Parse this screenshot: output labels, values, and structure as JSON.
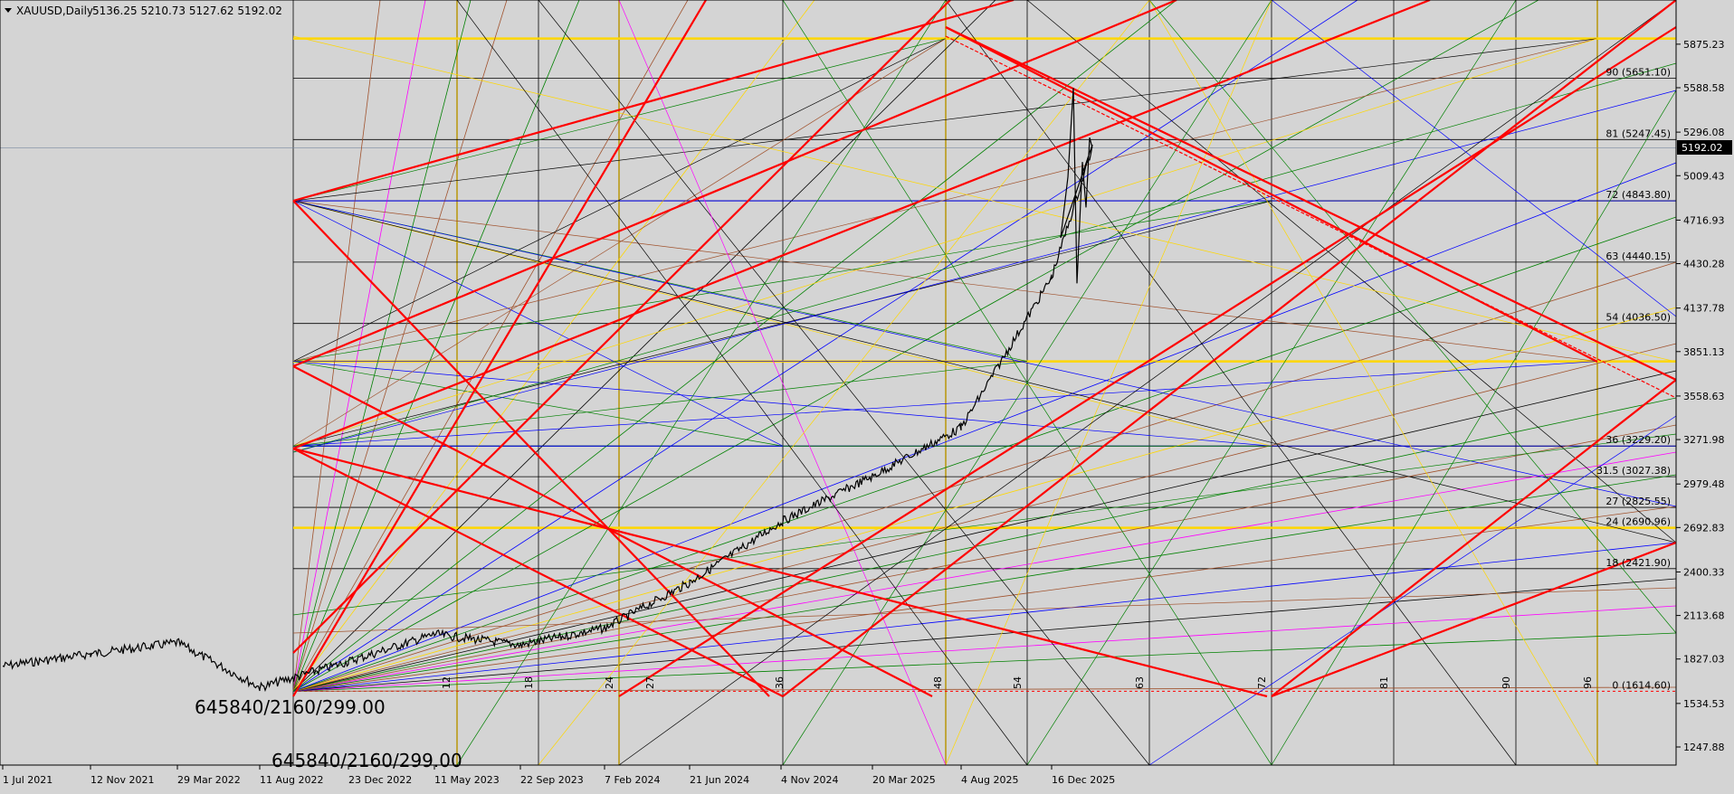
{
  "header": {
    "symbol_label": "XAUUSD,Daily",
    "ohlc": "5136.25 5210.73 5127.62 5192.02"
  },
  "current_price_label": "5192.02",
  "big_labels": [
    "645840/2160/299.00",
    "645840/2160/299.00"
  ],
  "colors": {
    "background": "#d4d4d4",
    "price": "#000000",
    "red": "#ff0000",
    "blue": "#0000ff",
    "green": "#008000",
    "yellow": "#ffd700",
    "brown": "#a0522d",
    "magenta": "#ff00ff",
    "black": "#000000",
    "grid_vertical": "#a08000"
  },
  "chart_data": {
    "type": "line",
    "series": [
      {
        "points_note": ""
      }
    ],
    "x_ticks": [
      "1 Jul 2021",
      "12 Nov 2021",
      "29 Mar 2022",
      "11 Aug 2022",
      "23 Dec 2022",
      "11 May 2023",
      "22 Sep 2023",
      "7 Feb 2024",
      "21 Jun 2024",
      "4 Nov 2024",
      "20 Mar 2025",
      "4 Aug 2025",
      "16 Dec 2025"
    ],
    "y_ticks": [
      "5875.23",
      "5588.58",
      "5296.08",
      "5009.43",
      "4716.93",
      "4430.28",
      "4137.78",
      "3851.13",
      "3558.63",
      "3271.98",
      "2979.48",
      "2692.83",
      "2400.33",
      "2113.68",
      "1827.03",
      "1534.53",
      "1247.88"
    ],
    "y_tick_values": [
      5875.23,
      5588.58,
      5296.08,
      5009.43,
      4716.93,
      4430.28,
      4137.78,
      3851.13,
      3558.63,
      3271.98,
      2979.48,
      2692.83,
      2400.33,
      2113.68,
      1827.03,
      1534.53,
      1247.88
    ],
    "ylim": [
      1247.88,
      6150
    ],
    "levels": [
      {
        "label": "90 (5651.10)",
        "value": 5651.1
      },
      {
        "label": "81 (5247.45)",
        "value": 5247.45
      },
      {
        "label": "72 (4843.80)",
        "value": 4843.8
      },
      {
        "label": "63 (4440.15)",
        "value": 4440.15
      },
      {
        "label": "54 (4036.50)",
        "value": 4036.5
      },
      {
        "label": "36 (3229.20)",
        "value": 3229.2
      },
      {
        "label": "31.5 (3027.38)",
        "value": 3027.38
      },
      {
        "label": "27 (2825.55)",
        "value": 2825.55
      },
      {
        "label": "24 (2690.96)",
        "value": 2690.96
      },
      {
        "label": "18 (2421.90)",
        "value": 2421.9
      },
      {
        "label": "0 (1614.60)",
        "value": 1614.6
      }
    ],
    "yellow_levels": [
      5912,
      3787,
      2690.96
    ],
    "bottom_time_labels": [
      "12",
      "18",
      "24",
      "27",
      "36",
      "48",
      "54",
      "63",
      "72",
      "81",
      "90",
      "96"
    ],
    "current_price": 5192.02,
    "price_path": [
      [
        "1 Jul 2021",
        1780
      ],
      [
        "12 Nov 2021",
        1860
      ],
      [
        "29 Mar 2022",
        1935
      ],
      [
        "11 Aug 2022",
        1640
      ],
      [
        "23 Dec 2022",
        1810
      ],
      [
        "11 May 2023",
        1990
      ],
      [
        "22 Sep 2023",
        1920
      ],
      [
        "7 Feb 2024",
        2030
      ],
      [
        "21 Jun 2024",
        2330
      ],
      [
        "4 Nov 2024",
        2730
      ],
      [
        "20 Mar 2025",
        3030
      ],
      [
        "4 Aug 2025",
        3350
      ],
      [
        "16 Dec 2025",
        4340
      ],
      [
        "16 Dec 2025",
        5192.02
      ]
    ]
  }
}
